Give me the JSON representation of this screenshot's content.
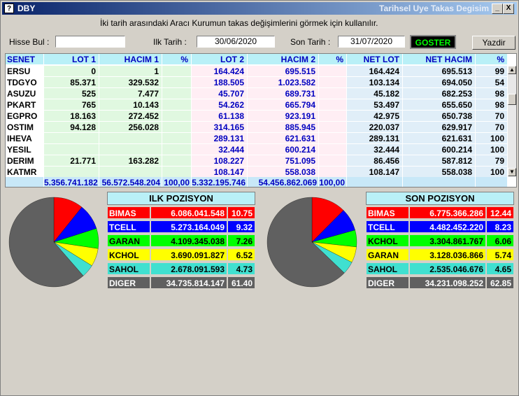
{
  "window": {
    "title_left": "DBY",
    "title_right": "Tarihsel Uye Takas Degisim",
    "minimize_glyph": "_",
    "close_glyph": "X",
    "icon_glyph": "?"
  },
  "hint": "İki tarih arasındaki  Aracı Kurumun takas değişimlerini görmek için kullanılır.",
  "controls": {
    "hisse_label": "Hisse Bul :",
    "hisse_value": "",
    "ilk_label": "Ilk Tarih :",
    "ilk_value": "30/06/2020",
    "son_label": "Son Tarih :",
    "son_value": "31/07/2020",
    "goster_label": "GOSTER",
    "yazdir_label": "Yazdir"
  },
  "table": {
    "headers": [
      "SENET",
      "LOT 1",
      "HACIM 1",
      "%",
      "LOT 2",
      "HACIM 2",
      "%",
      "NET LOT",
      "NET HACIM",
      "%"
    ],
    "rows": [
      [
        "ERSU",
        "0",
        "1",
        "",
        "164.424",
        "695.515",
        "",
        "164.424",
        "695.513",
        "99"
      ],
      [
        "TDGYO",
        "85.371",
        "329.532",
        "",
        "188.505",
        "1.023.582",
        "",
        "103.134",
        "694.050",
        "54"
      ],
      [
        "ASUZU",
        "525",
        "7.477",
        "",
        "45.707",
        "689.731",
        "",
        "45.182",
        "682.253",
        "98"
      ],
      [
        "PKART",
        "765",
        "10.143",
        "",
        "54.262",
        "665.794",
        "",
        "53.497",
        "655.650",
        "98"
      ],
      [
        "EGPRO",
        "18.163",
        "272.452",
        "",
        "61.138",
        "923.191",
        "",
        "42.975",
        "650.738",
        "70"
      ],
      [
        "OSTIM",
        "94.128",
        "256.028",
        "",
        "314.165",
        "885.945",
        "",
        "220.037",
        "629.917",
        "70"
      ],
      [
        "IHEVA",
        "",
        "",
        "",
        "289.131",
        "621.631",
        "",
        "289.131",
        "621.631",
        "100"
      ],
      [
        "YESIL",
        "",
        "",
        "",
        "32.444",
        "600.214",
        "",
        "32.444",
        "600.214",
        "100"
      ],
      [
        "DERIM",
        "21.771",
        "163.282",
        "",
        "108.227",
        "751.095",
        "",
        "86.456",
        "587.812",
        "79"
      ],
      [
        "KATMR",
        "",
        "",
        "",
        "108.147",
        "558.038",
        "",
        "108.147",
        "558.038",
        "100"
      ]
    ],
    "totals": [
      "",
      "5.356.741.182",
      "56.572.548.204",
      "100,00",
      "5.332.195.746",
      "54.456.862.069",
      "100,00",
      "",
      "",
      ""
    ]
  },
  "ilk": {
    "title": "ILK POZISYON",
    "rows": [
      {
        "name": "BIMAS",
        "value": "6.086.041.548",
        "pct": "10.75",
        "pctnum": 10.75,
        "bg": "#ff0000",
        "fg": "#ffffff"
      },
      {
        "name": "TCELL",
        "value": "5.273.164.049",
        "pct": "9.32",
        "pctnum": 9.32,
        "bg": "#0000ff",
        "fg": "#ffffff"
      },
      {
        "name": "GARAN",
        "value": "4.109.345.038",
        "pct": "7.26",
        "pctnum": 7.26,
        "bg": "#00ff00",
        "fg": "#000000"
      },
      {
        "name": "KCHOL",
        "value": "3.690.091.827",
        "pct": "6.52",
        "pctnum": 6.52,
        "bg": "#ffff00",
        "fg": "#000000"
      },
      {
        "name": "SAHOL",
        "value": "2.678.091.593",
        "pct": "4.73",
        "pctnum": 4.73,
        "bg": "#40e0d0",
        "fg": "#000000"
      },
      {
        "name": "DIGER",
        "value": "34.735.814.147",
        "pct": "61.40",
        "pctnum": 61.4,
        "bg": "#606060",
        "fg": "#ffffff"
      }
    ]
  },
  "son": {
    "title": "SON POZISYON",
    "rows": [
      {
        "name": "BIMAS",
        "value": "6.775.366.286",
        "pct": "12.44",
        "pctnum": 12.44,
        "bg": "#ff0000",
        "fg": "#ffffff"
      },
      {
        "name": "TCELL",
        "value": "4.482.452.220",
        "pct": "8.23",
        "pctnum": 8.23,
        "bg": "#0000ff",
        "fg": "#ffffff"
      },
      {
        "name": "KCHOL",
        "value": "3.304.861.767",
        "pct": "6.06",
        "pctnum": 6.06,
        "bg": "#00ff00",
        "fg": "#000000"
      },
      {
        "name": "GARAN",
        "value": "3.128.036.866",
        "pct": "5.74",
        "pctnum": 5.74,
        "bg": "#ffff00",
        "fg": "#000000"
      },
      {
        "name": "SAHOL",
        "value": "2.535.046.676",
        "pct": "4.65",
        "pctnum": 4.65,
        "bg": "#40e0d0",
        "fg": "#000000"
      },
      {
        "name": "DIGER",
        "value": "34.231.098.252",
        "pct": "62.85",
        "pctnum": 62.85,
        "bg": "#606060",
        "fg": "#ffffff"
      }
    ]
  }
}
